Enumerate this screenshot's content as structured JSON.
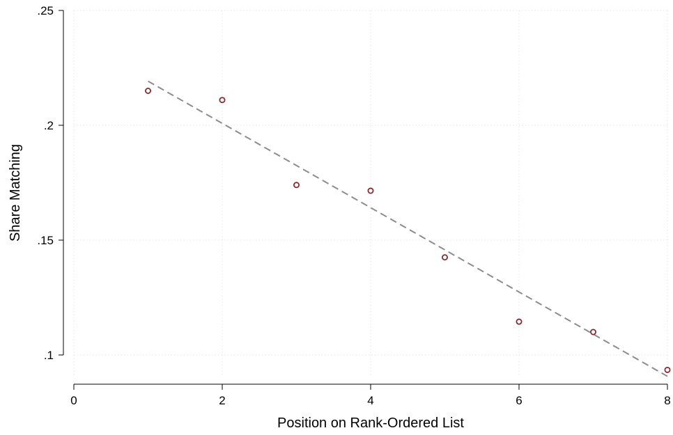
{
  "chart_data": {
    "type": "scatter",
    "title": "",
    "xlabel": "Position on Rank-Ordered List",
    "ylabel": "Share Matching",
    "xlim": [
      0,
      8
    ],
    "ylim": [
      0.09,
      0.25
    ],
    "xticks": [
      0,
      2,
      4,
      6,
      8
    ],
    "xtick_labels": [
      "0",
      "2",
      "4",
      "6",
      "8"
    ],
    "yticks": [
      0.1,
      0.15,
      0.2,
      0.25
    ],
    "ytick_labels": [
      ".1",
      ".15",
      ".2",
      ".25"
    ],
    "grid": true,
    "series": [
      {
        "kind": "scatter",
        "marker": "hollow-circle",
        "color": "#8b2a2a",
        "x": [
          1,
          2,
          3,
          4,
          5,
          6,
          7,
          8
        ],
        "y": [
          0.215,
          0.211,
          0.174,
          0.1715,
          0.1425,
          0.1145,
          0.11,
          0.0935
        ]
      },
      {
        "kind": "fit-line",
        "style": "dashed",
        "color": "#8c8c8c",
        "x": [
          1,
          8
        ],
        "y": [
          0.2192,
          0.0907
        ]
      }
    ]
  }
}
